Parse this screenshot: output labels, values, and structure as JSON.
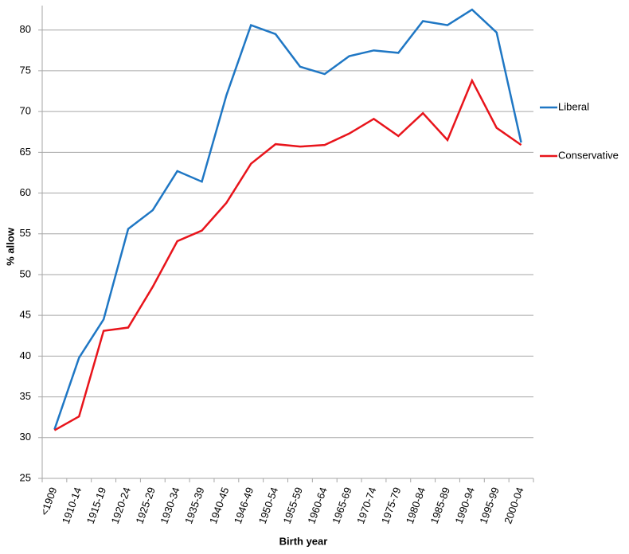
{
  "chart_data": {
    "type": "line",
    "x_label": "Birth year",
    "y_label": "% allow",
    "categories": [
      "<1909",
      "1910-14",
      "1915-19",
      "1920-24",
      "1925-29",
      "1930-34",
      "1935-39",
      "1940-45",
      "1946-49",
      "1950-54",
      "1955-59",
      "1960-64",
      "1965-69",
      "1970-74",
      "1975-79",
      "1980-84",
      "1985-89",
      "1990-94",
      "1995-99",
      "2000-04"
    ],
    "series": [
      {
        "name": "Liberal",
        "color": "#1f77c4",
        "values": [
          31,
          39.8,
          44.5,
          55.6,
          57.9,
          62.7,
          61.4,
          72,
          80.6,
          79.5,
          75.5,
          74.6,
          76.8,
          77.5,
          77.2,
          81.1,
          80.6,
          82.5,
          79.7,
          66.2
        ]
      },
      {
        "name": "Conservative",
        "color": "#e8141b",
        "values": [
          30.9,
          32.6,
          43.1,
          43.5,
          48.5,
          54.1,
          55.4,
          58.8,
          63.6,
          66,
          65.7,
          65.9,
          67.3,
          69.1,
          67,
          69.8,
          66.5,
          73.8,
          68,
          65.9
        ]
      }
    ],
    "ylim": [
      25,
      83
    ],
    "yticks": [
      25,
      30,
      35,
      40,
      45,
      50,
      55,
      60,
      65,
      70,
      75,
      80
    ],
    "grid": true,
    "legend": "right"
  }
}
